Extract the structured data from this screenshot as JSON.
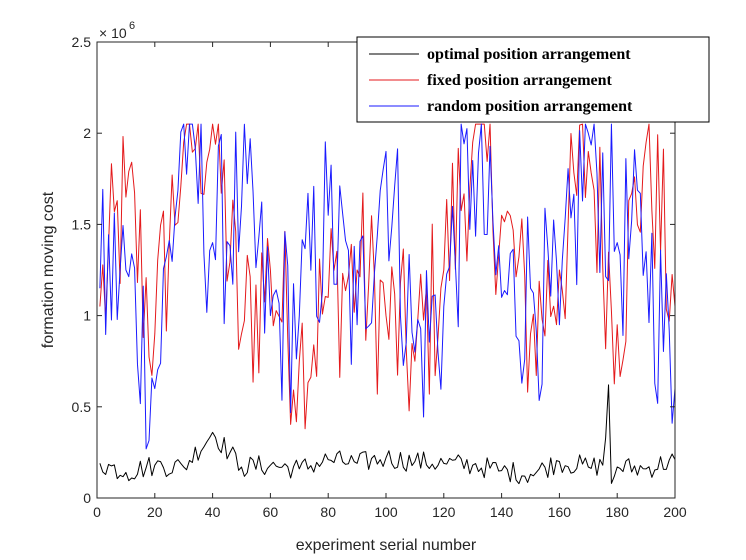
{
  "chart_data": {
    "type": "line",
    "title": "",
    "xlabel": "experiment serial number",
    "ylabel": "formation moving cost",
    "xlim": [
      0,
      200
    ],
    "ylim": [
      0,
      2500000
    ],
    "x_ticks": [
      "0",
      "20",
      "40",
      "60",
      "80",
      "100",
      "120",
      "140",
      "160",
      "180",
      "200"
    ],
    "y_ticks": [
      "0",
      "0.5",
      "1",
      "1.5",
      "2",
      "2.5"
    ],
    "y_exponent_base": "× 10",
    "y_exponent_power": "6",
    "legend_position": "top-right",
    "series": [
      {
        "name": "optimal position arrangement",
        "color": "#000000",
        "x": [
          1,
          10,
          20,
          30,
          40,
          50,
          60,
          70,
          80,
          90,
          100,
          110,
          120,
          130,
          140,
          150,
          160,
          170,
          175,
          176,
          177,
          178,
          180,
          190,
          200
        ],
        "values": [
          190000,
          140000,
          180000,
          170000,
          360000,
          170000,
          180000,
          160000,
          210000,
          190000,
          220000,
          200000,
          190000,
          180000,
          150000,
          130000,
          200000,
          170000,
          180000,
          330000,
          620000,
          80000,
          170000,
          160000,
          210000
        ]
      },
      {
        "name": "fixed position arrangement",
        "color": "#e41a1c",
        "x": [
          1,
          10,
          20,
          30,
          40,
          50,
          60,
          70,
          80,
          90,
          100,
          110,
          120,
          130,
          140,
          150,
          160,
          170,
          180,
          190,
          200
        ],
        "values": [
          1050000,
          1650000,
          900000,
          1950000,
          2050000,
          900000,
          1250000,
          750000,
          1100000,
          1250000,
          1000000,
          750000,
          1250000,
          1950000,
          1550000,
          900000,
          1250000,
          1900000,
          950000,
          1950000,
          1050000
        ]
      },
      {
        "name": "random position arrangement",
        "color": "#1a1aff",
        "x": [
          1,
          10,
          20,
          30,
          40,
          50,
          60,
          70,
          80,
          90,
          100,
          110,
          120,
          130,
          140,
          150,
          160,
          170,
          180,
          190,
          200
        ],
        "values": [
          1150000,
          1250000,
          600000,
          2050000,
          1400000,
          1600000,
          1000000,
          1000000,
          1550000,
          950000,
          1900000,
          800000,
          1050000,
          1850000,
          1100000,
          1150000,
          950000,
          2000000,
          1400000,
          1350000,
          600000
        ]
      }
    ]
  }
}
